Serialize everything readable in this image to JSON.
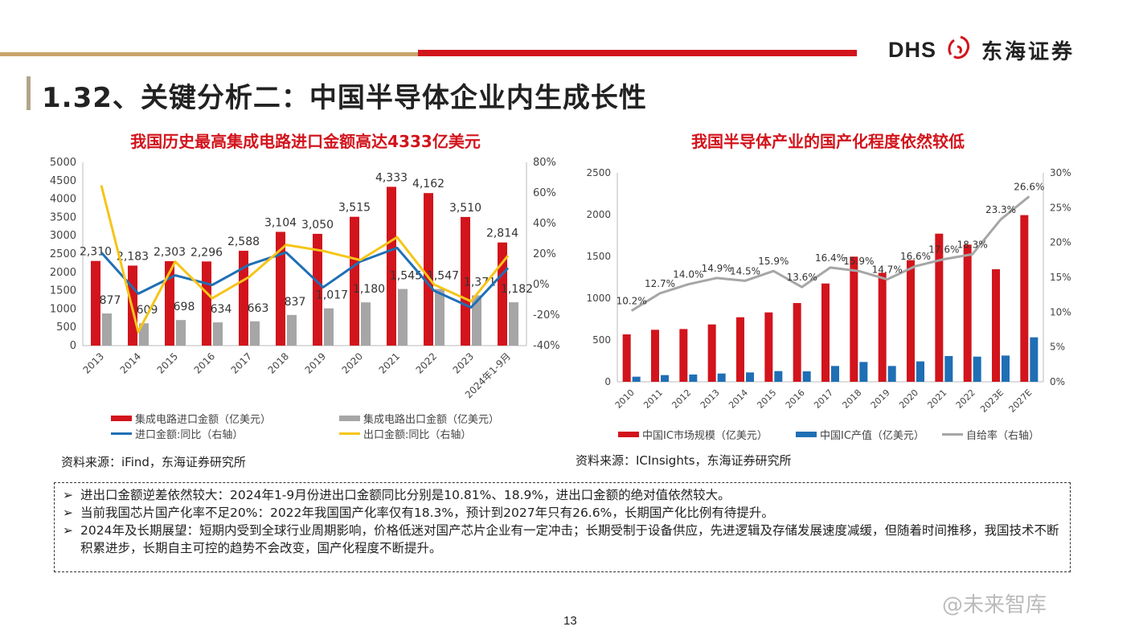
{
  "header": {
    "logo_latin": "DHS",
    "logo_cn": "东海证券",
    "title": "1.32、关键分析二：中国半导体企业内生成长性",
    "colors": {
      "gold": "#c8a56a",
      "red": "#d2141c"
    }
  },
  "chart_data": [
    {
      "type": "bar",
      "title": "我国历史最高集成电路进口金额高达4333亿美元",
      "categories": [
        "2013",
        "2014",
        "2015",
        "2016",
        "2017",
        "2018",
        "2019",
        "2020",
        "2021",
        "2022",
        "2023",
        "2024年1-9月"
      ],
      "ylim": [
        0,
        5000
      ],
      "yticks": [
        0,
        500,
        1000,
        1500,
        2000,
        2500,
        3000,
        3500,
        4000,
        4500,
        5000
      ],
      "y2lim": [
        -40,
        80
      ],
      "y2ticks": [
        "-40%",
        "-20%",
        "0%",
        "20%",
        "40%",
        "60%",
        "80%"
      ],
      "grid": false,
      "legend": "bottom",
      "series": [
        {
          "name": "集成电路进口金额（亿美元）",
          "kind": "bar",
          "color": "#d2141c",
          "values": [
            2310,
            2183,
            2303,
            2296,
            2588,
            3104,
            3050,
            3515,
            4333,
            4162,
            3510,
            2814
          ],
          "labels": [
            "2,310",
            "2,183",
            "2,303",
            "2,296",
            "2,588",
            "3,104",
            "3,050",
            "3,515",
            "4,333",
            "4,162",
            "3,510",
            "2,814"
          ]
        },
        {
          "name": "集成电路出口金额（亿美元）",
          "kind": "bar",
          "color": "#a6a6a6",
          "values": [
            877,
            609,
            698,
            634,
            663,
            837,
            1017,
            1180,
            1545,
            1547,
            1371,
            1182
          ],
          "labels": [
            "877",
            "609",
            "698",
            "634",
            "663",
            "837",
            "1,017",
            "1,180",
            "1,545",
            "1,547",
            "1,371",
            "1,182"
          ]
        },
        {
          "name": "进口金额:同比（右轴）",
          "kind": "line",
          "axis": "right",
          "color": "#1f6fb5",
          "values": [
            21,
            -6,
            6,
            -0.3,
            13,
            21,
            -1.8,
            15,
            24,
            -4,
            -15,
            10.81
          ]
        },
        {
          "name": "出口金额:同比（右轴）",
          "kind": "line",
          "axis": "right",
          "color": "#f5c518",
          "values": [
            65,
            -31,
            15,
            -9,
            5,
            26,
            22,
            16,
            31,
            0,
            -11,
            18.9
          ]
        }
      ]
    },
    {
      "type": "bar",
      "title": "我国半导体产业的国产化程度依然较低",
      "categories": [
        "2010",
        "2011",
        "2012",
        "2013",
        "2014",
        "2015",
        "2016",
        "2017",
        "2018",
        "2019",
        "2020",
        "2021",
        "2022",
        "2023E",
        "2027E"
      ],
      "ylim": [
        0,
        2500
      ],
      "yticks": [
        0,
        500,
        1000,
        1500,
        2000,
        2500
      ],
      "y2lim": [
        0,
        30
      ],
      "y2ticks": [
        "0%",
        "5%",
        "10%",
        "15%",
        "20%",
        "25%",
        "30%"
      ],
      "grid": false,
      "legend": "bottom",
      "series": [
        {
          "name": "中国IC市场规模（亿美元）",
          "kind": "bar",
          "color": "#d2141c",
          "values": [
            567,
            622,
            631,
            686,
            772,
            830,
            942,
            1176,
            1497,
            1304,
            1455,
            1772,
            1641,
            1346,
            1994
          ]
        },
        {
          "name": "中国IC产值（亿美元）",
          "kind": "bar",
          "color": "#1f6fb5",
          "values": [
            61,
            80,
            87,
            99,
            112,
            128,
            125,
            189,
            237,
            189,
            244,
            308,
            301,
            314,
            532
          ]
        },
        {
          "name": "自给率（右轴）",
          "kind": "line",
          "axis": "right",
          "color": "#a6a6a6",
          "values": [
            10.2,
            12.7,
            14.0,
            14.9,
            14.5,
            15.9,
            13.6,
            16.4,
            15.9,
            14.7,
            16.6,
            17.6,
            18.3,
            23.3,
            26.6
          ],
          "labels": [
            "10.2%",
            "12.7%",
            "14.0%",
            "14.9%",
            "14.5%",
            "15.9%",
            "13.6%",
            "16.4%",
            "15.9%",
            "14.7%",
            "16.6%",
            "17.6%",
            "18.3%",
            "23.3%",
            "26.6%"
          ]
        }
      ]
    }
  ],
  "sources": [
    "资料来源：iFind，东海证券研究所",
    "资料来源：ICInsights，东海证券研究所"
  ],
  "bullets": [
    "进出口金额逆差依然较大：2024年1-9月份进出口金额同比分别是10.81%、18.9%，进出口金额的绝对值依然较大。",
    "当前我国芯片国产化率不足20%：2022年我国国产化率仅有18.3%，预计到2027年只有26.6%，长期国产化比例有待提升。",
    "2024年及长期展望：短期内受到全球行业周期影响，价格低迷对国产芯片企业有一定冲击；长期受制于设备供应，先进逻辑及存储发展速度减缓，但随着时间推移，我国技术不断积累进步，长期自主可控的趋势不会改变，国产化程度不断提升。"
  ],
  "bullet_marker": "➢",
  "page_number": "13",
  "watermark": "@未来智库"
}
